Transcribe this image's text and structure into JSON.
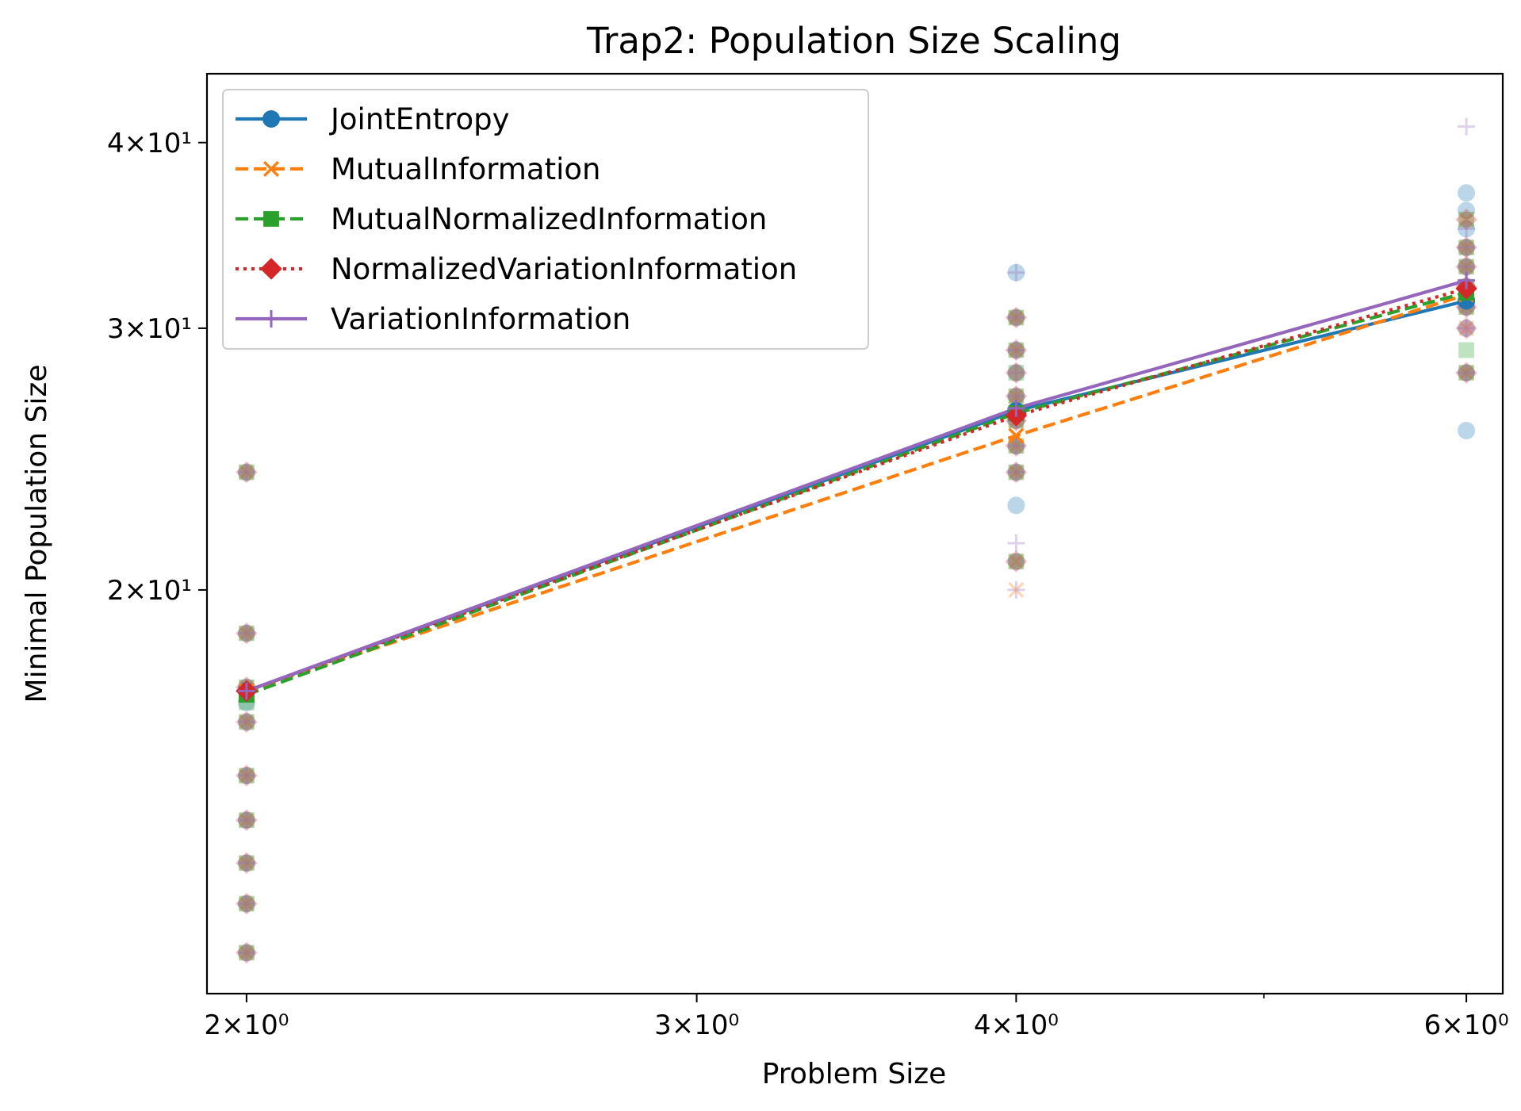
{
  "chart_data": {
    "type": "line",
    "title": "Trap2: Population Size Scaling",
    "xlabel": "Problem Size",
    "ylabel": "Minimal Population Size",
    "xscale": "log",
    "yscale": "log",
    "xlim": [
      1.93,
      6.2
    ],
    "ylim": [
      10.7,
      44.5
    ],
    "grid": false,
    "legend_position": "top-left",
    "x": [
      2,
      4,
      6
    ],
    "x_ticks": [
      {
        "value": 2,
        "label": "2×10⁰"
      },
      {
        "value": 3,
        "label": "3×10⁰"
      },
      {
        "value": 4,
        "label": "4×10⁰"
      },
      {
        "value": 6,
        "label": "6×10⁰"
      }
    ],
    "x_minor_ticks": [
      5
    ],
    "y_ticks": [
      {
        "value": 20,
        "label": "2×10¹"
      },
      {
        "value": 30,
        "label": "3×10¹"
      },
      {
        "value": 40,
        "label": "4×10¹"
      }
    ],
    "series": [
      {
        "name": "JointEntropy",
        "color": "#1f77b4",
        "marker": "circle",
        "line": "solid",
        "values": [
          17.1,
          26.4,
          31.3
        ],
        "samples": [
          [
            2,
            [
              11.4,
              12.3,
              13.1,
              14.0,
              15.0,
              16.3,
              16.8,
              17.2,
              18.7,
              24.0
            ]
          ],
          [
            4,
            [
              20.9,
              22.8,
              24.0,
              25.0,
              26.0,
              27.0,
              28.0,
              29.0,
              30.5,
              32.7
            ]
          ],
          [
            6,
            [
              25.6,
              28.0,
              30.0,
              31.0,
              32.0,
              33.0,
              34.0,
              35.0,
              36.0,
              37.0
            ]
          ]
        ]
      },
      {
        "name": "MutualInformation",
        "color": "#ff7f0e",
        "marker": "x",
        "line": "dashed",
        "values": [
          17.1,
          25.4,
          31.6
        ],
        "samples": [
          [
            2,
            [
              11.4,
              12.3,
              13.1,
              14.0,
              15.0,
              16.3,
              17.2,
              18.7,
              24.0
            ]
          ],
          [
            4,
            [
              20.0,
              20.9,
              24.0,
              25.0,
              26.0,
              27.0,
              29.0,
              30.5
            ]
          ],
          [
            6,
            [
              28.0,
              30.0,
              31.0,
              32.0,
              33.0,
              34.0,
              35.5
            ]
          ]
        ]
      },
      {
        "name": "MutualNormalizedInformation",
        "color": "#2ca02c",
        "marker": "square",
        "line": "dashed",
        "values": [
          17.0,
          26.3,
          31.7
        ],
        "samples": [
          [
            2,
            [
              11.4,
              12.3,
              13.1,
              14.0,
              15.0,
              16.3,
              16.8,
              17.2,
              18.7,
              24.0
            ]
          ],
          [
            4,
            [
              20.9,
              24.0,
              25.0,
              26.0,
              27.0,
              28.0,
              29.0,
              30.5
            ]
          ],
          [
            6,
            [
              28.0,
              29.0,
              31.0,
              32.0,
              33.0,
              34.0,
              35.5
            ]
          ]
        ]
      },
      {
        "name": "NormalizedVariationInformation",
        "color": "#d62728",
        "marker": "diamond",
        "line": "dotted",
        "values": [
          17.1,
          26.2,
          31.9
        ],
        "samples": [
          [
            2,
            [
              11.4,
              12.3,
              13.1,
              14.0,
              15.0,
              16.3,
              17.2,
              18.7,
              24.0
            ]
          ],
          [
            4,
            [
              20.9,
              24.0,
              25.0,
              26.0,
              27.0,
              28.0,
              29.0,
              30.5
            ]
          ],
          [
            6,
            [
              28.0,
              30.0,
              31.0,
              32.0,
              33.0,
              34.0,
              35.5
            ]
          ]
        ]
      },
      {
        "name": "VariationInformation",
        "color": "#9467bd",
        "marker": "plus",
        "line": "solid",
        "values": [
          17.1,
          26.5,
          32.3
        ],
        "samples": [
          [
            2,
            [
              11.4,
              12.3,
              13.1,
              14.0,
              15.0,
              16.3,
              17.2,
              18.7,
              24.0
            ]
          ],
          [
            4,
            [
              20.0,
              21.5,
              24.0,
              25.0,
              26.0,
              27.0,
              28.0,
              29.0,
              30.5,
              32.7
            ]
          ],
          [
            6,
            [
              28.0,
              30.0,
              31.0,
              32.0,
              33.0,
              34.0,
              35.0,
              41.0
            ]
          ]
        ]
      }
    ]
  }
}
